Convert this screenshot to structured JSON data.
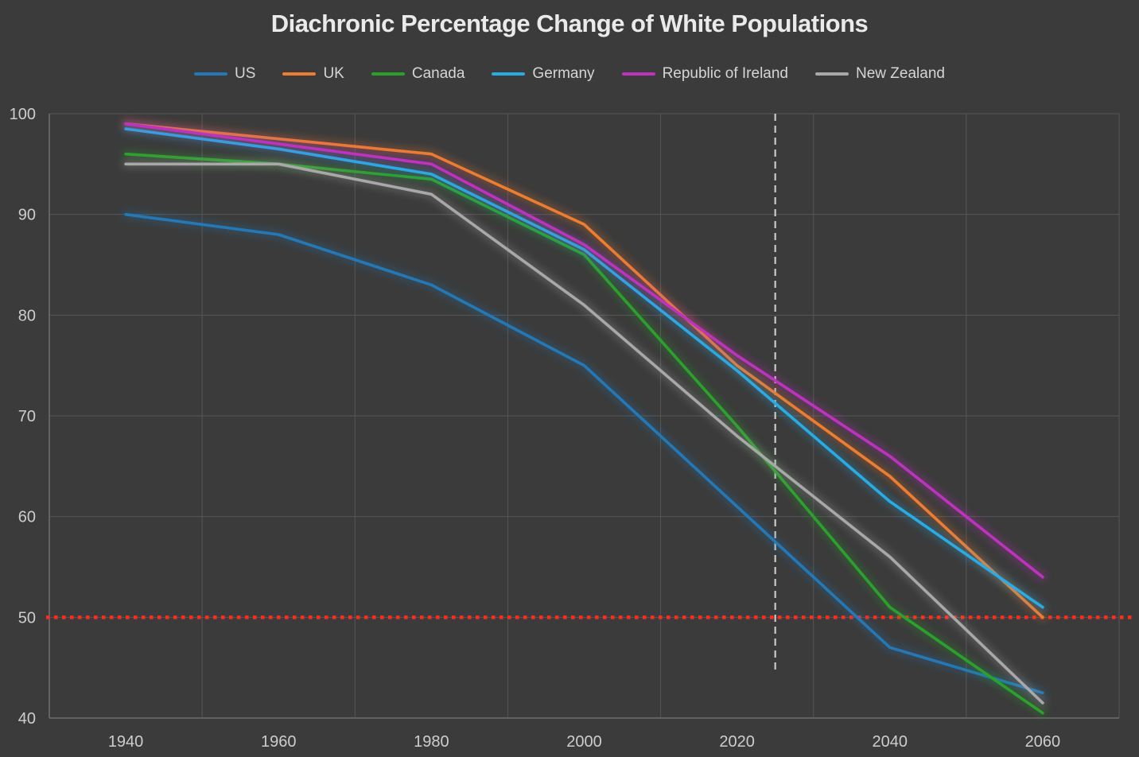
{
  "chart_data": {
    "type": "line",
    "title": "Diachronic Percentage Change of White Populations",
    "x": [
      1940,
      1960,
      1980,
      2000,
      2020,
      2040,
      2060
    ],
    "series": [
      {
        "name": "US",
        "color": "#2478b5",
        "values": [
          90,
          88,
          83,
          75,
          61,
          47,
          42.5
        ]
      },
      {
        "name": "UK",
        "color": "#ed7d31",
        "values": [
          99,
          97.5,
          96,
          89,
          75,
          64,
          50
        ]
      },
      {
        "name": "Canada",
        "color": "#2ca02c",
        "values": [
          96,
          95,
          93.5,
          86,
          69,
          51,
          40.5
        ]
      },
      {
        "name": "Germany",
        "color": "#29abe3",
        "values": [
          98.5,
          96.5,
          94,
          86.5,
          74.5,
          61.5,
          51
        ]
      },
      {
        "name": "Republic of Ireland",
        "color": "#be33be",
        "values": [
          99,
          97,
          95,
          87,
          76,
          66,
          54
        ]
      },
      {
        "name": "New Zealand",
        "color": "#a8a8a8",
        "values": [
          95,
          95,
          92,
          81,
          68,
          56,
          41.5
        ]
      }
    ],
    "ylim": [
      40,
      100
    ],
    "yticks": [
      40,
      50,
      60,
      70,
      80,
      90,
      100
    ],
    "xticks": [
      1940,
      1960,
      1980,
      2000,
      2020,
      2040,
      2060
    ],
    "grid": true,
    "legend_position": "top",
    "annotations": {
      "hline": {
        "value": 50,
        "color": "#ff2c1e",
        "style": "dotted"
      },
      "vline": {
        "year": 2025,
        "color": "#c9c9c9",
        "style": "dashed",
        "from_value": 100,
        "to_value": 44.4
      }
    },
    "colors": {
      "background": "#3b3b3b",
      "gridline": "#575757",
      "axis_line": "#6e6e6e",
      "tick_text": "#cdcdcd",
      "title_text": "#eaeaea",
      "legend_text": "#d5d5d5"
    }
  }
}
